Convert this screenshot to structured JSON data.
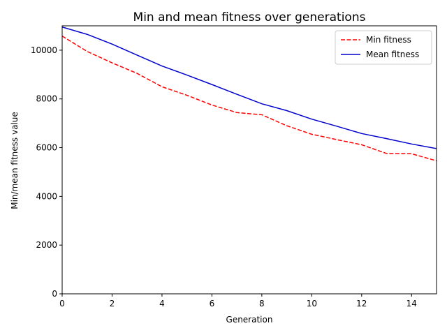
{
  "chart_data": {
    "type": "line",
    "title": "Min and mean fitness over generations",
    "xlabel": "Generation",
    "ylabel": "Min/mean fitness value",
    "xlim": [
      0,
      15
    ],
    "ylim": [
      0,
      11000
    ],
    "xticks": [
      0,
      2,
      4,
      6,
      8,
      10,
      12,
      14
    ],
    "yticks": [
      0,
      2000,
      4000,
      6000,
      8000,
      10000
    ],
    "grid": false,
    "legend_position": "top-right",
    "x": [
      0,
      1,
      2,
      3,
      4,
      5,
      6,
      7,
      8,
      9,
      10,
      11,
      12,
      13,
      14,
      15
    ],
    "series": [
      {
        "name": "Min fitness",
        "color": "#ff0000",
        "style": "dashed",
        "values": [
          10580,
          9950,
          9480,
          9050,
          8500,
          8150,
          7750,
          7440,
          7350,
          6900,
          6550,
          6330,
          6120,
          5760,
          5750,
          5460
        ]
      },
      {
        "name": "Mean fitness",
        "color": "#0000cc",
        "style": "solid",
        "values": [
          10950,
          10650,
          10250,
          9800,
          9350,
          8980,
          8590,
          8190,
          7800,
          7520,
          7170,
          6880,
          6580,
          6370,
          6150,
          5960
        ]
      }
    ]
  }
}
